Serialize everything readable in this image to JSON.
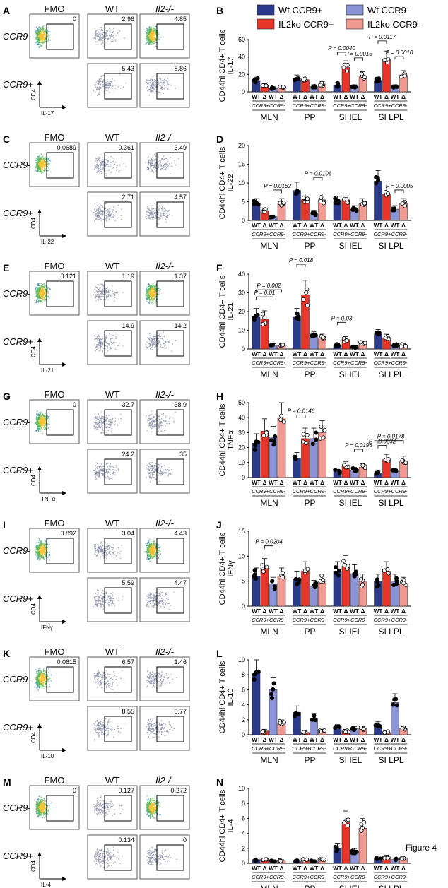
{
  "figure_label": "Figure 4",
  "flow_headers": [
    "FMO",
    "WT",
    "Il2-/-"
  ],
  "row_labels": {
    "ccr9_neg": "CCR9-",
    "ccr9_pos": "CCR9+"
  },
  "cd4_label": "CD4",
  "legend": [
    {
      "label": "Wt CCR9+",
      "color": "#2c3a8c"
    },
    {
      "label": "IL2ko CCR9+",
      "color": "#e8352a"
    },
    {
      "label": "Wt CCR9-",
      "color": "#8b94d6"
    },
    {
      "label": "IL2ko CCR9-",
      "color": "#f09a92"
    }
  ],
  "x_groups": [
    "MLN",
    "PP",
    "SI IEL",
    "SI LPL"
  ],
  "x_sub_wt": "WT",
  "x_sub_ko": "Δ",
  "x_ccr9_pos": "CCR9+",
  "x_ccr9_neg": "CCR9-",
  "ylabel_cells": "CD44hi CD4+ T cells",
  "panels": [
    {
      "left_letter": "A",
      "right_letter": "B",
      "cytokine": "IL-17",
      "flow_values": {
        "fmo": "0",
        "wt_neg": "2.96",
        "ko_neg": "4.85",
        "wt_pos": "5.43",
        "ko_pos": "8.86"
      },
      "ylabel": "IL-17"
    },
    {
      "left_letter": "C",
      "right_letter": "D",
      "cytokine": "IL-22",
      "flow_values": {
        "fmo": "0.0689",
        "wt_neg": "0.361",
        "ko_neg": "3.49",
        "wt_pos": "2.71",
        "ko_pos": "4.57"
      },
      "ylabel": "IL-22"
    },
    {
      "left_letter": "E",
      "right_letter": "F",
      "cytokine": "IL-21",
      "flow_values": {
        "fmo": "0.121",
        "wt_neg": "1.19",
        "ko_neg": "1.37",
        "wt_pos": "14.9",
        "ko_pos": "14.2"
      },
      "ylabel": "IL-21"
    },
    {
      "left_letter": "G",
      "right_letter": "H",
      "cytokine": "TNFα",
      "flow_values": {
        "fmo": "0",
        "wt_neg": "32.7",
        "ko_neg": "38.9",
        "wt_pos": "24.2",
        "ko_pos": "35"
      },
      "ylabel": "TNFα"
    },
    {
      "left_letter": "I",
      "right_letter": "J",
      "cytokine": "IFNγ",
      "flow_values": {
        "fmo": "0.892",
        "wt_neg": "3.04",
        "ko_neg": "4.43",
        "wt_pos": "5.59",
        "ko_pos": "4.47"
      },
      "ylabel": "IFNγ"
    },
    {
      "left_letter": "K",
      "right_letter": "L",
      "cytokine": "IL-10",
      "flow_values": {
        "fmo": "0.0615",
        "wt_neg": "6.57",
        "ko_neg": "1.46",
        "wt_pos": "8.55",
        "ko_pos": "0.77"
      },
      "ylabel": "IL-10"
    },
    {
      "left_letter": "M",
      "right_letter": "N",
      "cytokine": "IL-4",
      "flow_values": {
        "fmo": "0",
        "wt_neg": "0.127",
        "ko_neg": "0.272",
        "wt_pos": "0.134",
        "ko_pos": "0"
      },
      "ylabel": "IL-4"
    }
  ],
  "chart_data": [
    {
      "type": "bar",
      "panel": "B",
      "title": "",
      "ylabel": "IL-17 CD44hi CD4+ T cells",
      "ylim": [
        0,
        60
      ],
      "yticks": [
        0,
        20,
        40,
        60
      ],
      "categories": [
        "MLN",
        "PP",
        "SI IEL",
        "SI LPL"
      ],
      "series": [
        {
          "name": "Wt CCR9+",
          "values": [
            13,
            15,
            8,
            13
          ]
        },
        {
          "name": "IL2ko CCR9+",
          "values": [
            7,
            14,
            28,
            37
          ]
        },
        {
          "name": "Wt CCR9-",
          "values": [
            4,
            6,
            6,
            6
          ]
        },
        {
          "name": "IL2ko CCR9-",
          "values": [
            5,
            9,
            18,
            19
          ]
        }
      ],
      "pvalues": [
        {
          "text": "P = 0.0040",
          "group": 2,
          "from": 0,
          "to": 1
        },
        {
          "text": "P = 0.0013",
          "group": 2,
          "from": 2,
          "to": 3
        },
        {
          "text": "P = 0.0117",
          "group": 3,
          "from": 0,
          "to": 1
        },
        {
          "text": "P = 0.0010",
          "group": 3,
          "from": 2,
          "to": 3
        }
      ]
    },
    {
      "type": "bar",
      "panel": "D",
      "title": "",
      "ylabel": "IL-22 CD44hi CD4+ T cells",
      "ylim": [
        0,
        20
      ],
      "yticks": [
        0,
        5,
        10,
        15,
        20
      ],
      "categories": [
        "MLN",
        "PP",
        "SI IEL",
        "SI LPL"
      ],
      "series": [
        {
          "name": "Wt CCR9+",
          "values": [
            4.5,
            8,
            5,
            10.5
          ]
        },
        {
          "name": "IL2ko CCR9+",
          "values": [
            2.5,
            5.5,
            5.5,
            7
          ]
        },
        {
          "name": "Wt CCR9-",
          "values": [
            1,
            2,
            3,
            3
          ]
        },
        {
          "name": "IL2ko CCR9-",
          "values": [
            4.5,
            5.5,
            4.5,
            4.5
          ]
        }
      ],
      "pvalues": [
        {
          "text": "P = 0.0162",
          "group": 0,
          "from": 2,
          "to": 3
        },
        {
          "text": "P = 0.0106",
          "group": 1,
          "from": 2,
          "to": 3
        },
        {
          "text": "P = 0.0005",
          "group": 3,
          "from": 2,
          "to": 3
        }
      ]
    },
    {
      "type": "bar",
      "panel": "F",
      "title": "",
      "ylabel": "IL-21 CD44hi CD4+ T cells",
      "ylim": [
        0,
        40
      ],
      "yticks": [
        0,
        10,
        20,
        30,
        40
      ],
      "categories": [
        "MLN",
        "PP",
        "SI IEL",
        "SI LPL"
      ],
      "series": [
        {
          "name": "Wt CCR9+",
          "values": [
            17,
            17,
            2,
            8
          ]
        },
        {
          "name": "IL2ko CCR9+",
          "values": [
            16,
            29,
            5,
            6
          ]
        },
        {
          "name": "Wt CCR9-",
          "values": [
            2,
            7,
            1,
            2
          ]
        },
        {
          "name": "IL2ko CCR9-",
          "values": [
            2,
            6,
            3,
            2
          ]
        }
      ],
      "pvalues": [
        {
          "text": "P = 0.01",
          "group": 0,
          "from": 0,
          "to": 2
        },
        {
          "text": "P = 0.002",
          "group": 0,
          "from": 0,
          "to": 3
        },
        {
          "text": "P = 0.018",
          "group": 1,
          "from": 0,
          "to": 1
        },
        {
          "text": "P = 0.03",
          "group": 2,
          "from": 0,
          "to": 1
        }
      ]
    },
    {
      "type": "bar",
      "panel": "H",
      "title": "",
      "ylabel": "TNFα CD44hi CD4+ T cells",
      "ylim": [
        0,
        50
      ],
      "yticks": [
        0,
        10,
        20,
        30,
        40,
        50
      ],
      "categories": [
        "MLN",
        "PP",
        "SI IEL",
        "SI LPL"
      ],
      "series": [
        {
          "name": "Wt CCR9+",
          "values": [
            23,
            13,
            4,
            3
          ]
        },
        {
          "name": "IL2ko CCR9+",
          "values": [
            31,
            26,
            8,
            12
          ]
        },
        {
          "name": "Wt CCR9-",
          "values": [
            27,
            26,
            5,
            4
          ]
        },
        {
          "name": "IL2ko CCR9-",
          "values": [
            40,
            30,
            7,
            11
          ]
        }
      ],
      "pvalues": [
        {
          "text": "P = 0.0146",
          "group": 1,
          "from": 0,
          "to": 1
        },
        {
          "text": "P = 0.0198",
          "group": 2,
          "from": 2,
          "to": 3
        },
        {
          "text": "P = 0.0032",
          "group": 3,
          "from": 0,
          "to": 1
        },
        {
          "text": "P = 0.0178",
          "group": 3,
          "from": 0,
          "to": 3
        }
      ]
    },
    {
      "type": "bar",
      "panel": "J",
      "title": "",
      "ylabel": "IFNγ CD44hi CD4+ T cells",
      "ylim": [
        0,
        15
      ],
      "yticks": [
        0,
        5,
        10,
        15
      ],
      "categories": [
        "MLN",
        "PP",
        "SI IEL",
        "SI LPL"
      ],
      "series": [
        {
          "name": "Wt CCR9+",
          "values": [
            6,
            5.5,
            7,
            5
          ]
        },
        {
          "name": "IL2ko CCR9+",
          "values": [
            7.5,
            7,
            8,
            7
          ]
        },
        {
          "name": "Wt CCR9-",
          "values": [
            4.5,
            4,
            6.5,
            5
          ]
        },
        {
          "name": "IL2ko CCR9-",
          "values": [
            6,
            5,
            5,
            4.5
          ]
        }
      ],
      "pvalues": [
        {
          "text": "P = 0.0204",
          "group": 0,
          "from": 1,
          "to": 2
        }
      ]
    },
    {
      "type": "bar",
      "panel": "L",
      "title": "",
      "ylabel": "IL-10 CD44hi CD4+ T cells",
      "ylim": [
        0,
        10
      ],
      "yticks": [
        0,
        2,
        4,
        6,
        8,
        10
      ],
      "categories": [
        "MLN",
        "PP",
        "SI IEL",
        "SI LPL"
      ],
      "series": [
        {
          "name": "Wt CCR9+",
          "values": [
            8.2,
            3,
            1,
            1.3
          ]
        },
        {
          "name": "IL2ko CCR9+",
          "values": [
            0.5,
            0.3,
            0.5,
            0.3
          ]
        },
        {
          "name": "Wt CCR9-",
          "values": [
            6,
            2.2,
            0.8,
            4.3
          ]
        },
        {
          "name": "IL2ko CCR9-",
          "values": [
            1.5,
            0.5,
            0.8,
            0.8
          ]
        }
      ],
      "pvalues": []
    },
    {
      "type": "bar",
      "panel": "N",
      "title": "",
      "ylabel": "IL-4 CD44hi CD4+ T cells",
      "ylim": [
        0,
        10
      ],
      "yticks": [
        0,
        2,
        4,
        6,
        8,
        10
      ],
      "categories": [
        "MLN",
        "PP",
        "SI IEL",
        "SI LPL"
      ],
      "series": [
        {
          "name": "Wt CCR9+",
          "values": [
            0.5,
            0.3,
            2,
            0.7
          ]
        },
        {
          "name": "IL2ko CCR9+",
          "values": [
            0.5,
            0.5,
            5.5,
            0.8
          ]
        },
        {
          "name": "Wt CCR9-",
          "values": [
            0.3,
            0.3,
            1.5,
            0.5
          ]
        },
        {
          "name": "IL2ko CCR9-",
          "values": [
            0.3,
            0.5,
            4.7,
            0.7
          ]
        }
      ],
      "pvalues": []
    }
  ]
}
